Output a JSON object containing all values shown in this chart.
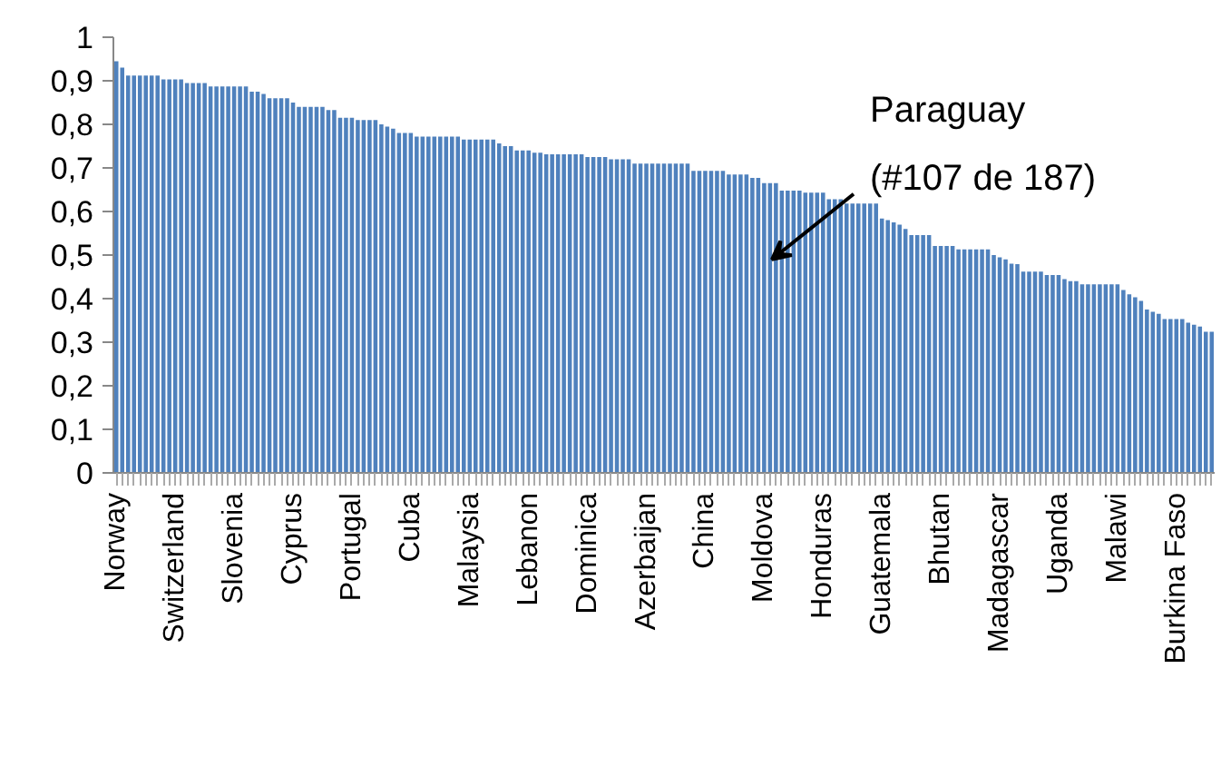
{
  "chart_data": {
    "type": "bar",
    "categories": [
      "Norway",
      null,
      null,
      null,
      null,
      null,
      null,
      null,
      null,
      null,
      "Switzerland",
      null,
      null,
      null,
      null,
      null,
      null,
      null,
      null,
      null,
      "Slovenia",
      null,
      null,
      null,
      null,
      null,
      null,
      null,
      null,
      null,
      "Cyprus",
      null,
      null,
      null,
      null,
      null,
      null,
      null,
      null,
      null,
      "Portugal",
      null,
      null,
      null,
      null,
      null,
      null,
      null,
      null,
      null,
      "Cuba",
      null,
      null,
      null,
      null,
      null,
      null,
      null,
      null,
      null,
      "Malaysia",
      null,
      null,
      null,
      null,
      null,
      null,
      null,
      null,
      null,
      "Lebanon",
      null,
      null,
      null,
      null,
      null,
      null,
      null,
      null,
      null,
      "Dominica",
      null,
      null,
      null,
      null,
      null,
      null,
      null,
      null,
      null,
      "Azerbaijan",
      null,
      null,
      null,
      null,
      null,
      null,
      null,
      null,
      null,
      "China",
      null,
      null,
      null,
      null,
      null,
      null,
      null,
      null,
      null,
      "Moldova",
      null,
      null,
      null,
      null,
      null,
      null,
      null,
      null,
      null,
      "Honduras",
      null,
      null,
      null,
      null,
      null,
      null,
      null,
      null,
      null,
      "Guatemala",
      null,
      null,
      null,
      null,
      null,
      null,
      null,
      null,
      null,
      "Bhutan",
      null,
      null,
      null,
      null,
      null,
      null,
      null,
      null,
      null,
      "Madagascar",
      null,
      null,
      null,
      null,
      null,
      null,
      null,
      null,
      null,
      "Uganda",
      null,
      null,
      null,
      null,
      null,
      null,
      null,
      null,
      null,
      "Malawi",
      null,
      null,
      null,
      null,
      null,
      null,
      null,
      null,
      null,
      "Burkina Faso",
      null,
      null,
      null,
      null,
      null,
      null
    ],
    "values": [
      0.945,
      0.93,
      0.912,
      0.912,
      0.912,
      0.912,
      0.912,
      0.912,
      0.903,
      0.903,
      0.903,
      0.903,
      0.895,
      0.895,
      0.895,
      0.895,
      0.887,
      0.887,
      0.887,
      0.887,
      0.887,
      0.887,
      0.887,
      0.875,
      0.875,
      0.87,
      0.86,
      0.86,
      0.86,
      0.86,
      0.85,
      0.84,
      0.84,
      0.84,
      0.84,
      0.84,
      0.833,
      0.833,
      0.815,
      0.815,
      0.815,
      0.81,
      0.81,
      0.81,
      0.81,
      0.8,
      0.795,
      0.79,
      0.78,
      0.78,
      0.78,
      0.772,
      0.772,
      0.772,
      0.772,
      0.772,
      0.772,
      0.772,
      0.772,
      0.765,
      0.765,
      0.765,
      0.765,
      0.765,
      0.765,
      0.756,
      0.75,
      0.75,
      0.74,
      0.74,
      0.74,
      0.735,
      0.735,
      0.731,
      0.731,
      0.731,
      0.731,
      0.731,
      0.731,
      0.731,
      0.725,
      0.725,
      0.725,
      0.725,
      0.72,
      0.72,
      0.72,
      0.72,
      0.71,
      0.71,
      0.71,
      0.71,
      0.71,
      0.71,
      0.71,
      0.71,
      0.71,
      0.71,
      0.693,
      0.693,
      0.693,
      0.693,
      0.693,
      0.693,
      0.685,
      0.685,
      0.685,
      0.685,
      0.677,
      0.677,
      0.665,
      0.665,
      0.665,
      0.648,
      0.648,
      0.648,
      0.648,
      0.643,
      0.643,
      0.643,
      0.643,
      0.628,
      0.628,
      0.628,
      0.618,
      0.618,
      0.618,
      0.618,
      0.618,
      0.618,
      0.584,
      0.58,
      0.575,
      0.57,
      0.56,
      0.546,
      0.546,
      0.546,
      0.546,
      0.521,
      0.521,
      0.521,
      0.521,
      0.513,
      0.513,
      0.513,
      0.513,
      0.513,
      0.513,
      0.5,
      0.495,
      0.49,
      0.48,
      0.479,
      0.462,
      0.462,
      0.462,
      0.462,
      0.454,
      0.454,
      0.454,
      0.445,
      0.44,
      0.44,
      0.433,
      0.433,
      0.433,
      0.433,
      0.433,
      0.433,
      0.433,
      0.42,
      0.41,
      0.403,
      0.395,
      0.375,
      0.37,
      0.365,
      0.353,
      0.353,
      0.353,
      0.353,
      0.345,
      0.34,
      0.336,
      0.324,
      0.324
    ],
    "color": "#4f81bd",
    "ylim": [
      0,
      1
    ],
    "yticks": [
      0,
      {
        "value": 0.1,
        "label": "0,1"
      },
      {
        "value": 0.2,
        "label": "0,2"
      },
      {
        "value": 0.3,
        "label": "0,3"
      },
      {
        "value": 0.4,
        "label": "0,4"
      },
      {
        "value": 0.5,
        "label": "0,5"
      },
      {
        "value": 0.6,
        "label": "0,6"
      },
      {
        "value": 0.7,
        "label": "0,7"
      },
      {
        "value": 0.8,
        "label": "0,8"
      },
      {
        "value": 0.9,
        "label": "0,9"
      },
      1
    ],
    "annotations": [
      {
        "text": "Paraguay\n(#107 de 187)",
        "y": 0.49
      }
    ]
  }
}
